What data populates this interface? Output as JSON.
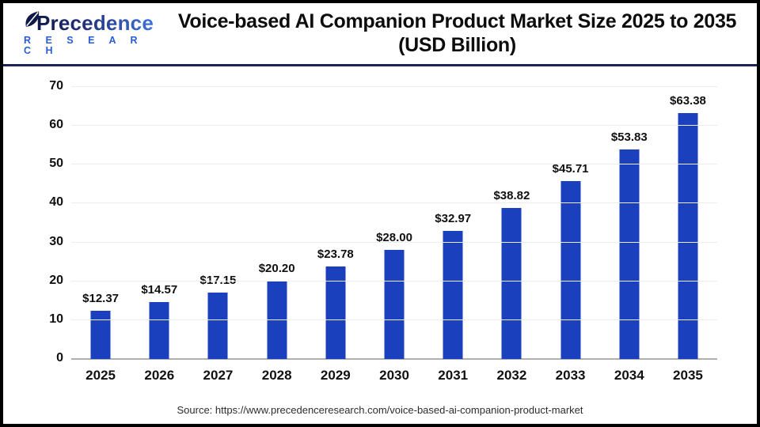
{
  "header": {
    "logo": {
      "word1": "Precedence",
      "word2": "R E S E A R C H"
    },
    "title_line1": "Voice-based AI Companion Product Market Size 2025 to 2035",
    "title_line2": "(USD Billion)"
  },
  "chart_data": {
    "type": "bar",
    "title": "Voice-based AI Companion Product Market Size 2025 to 2035 (USD Billion)",
    "categories": [
      "2025",
      "2026",
      "2027",
      "2028",
      "2029",
      "2030",
      "2031",
      "2032",
      "2033",
      "2034",
      "2035"
    ],
    "values": [
      12.37,
      14.57,
      17.15,
      20.2,
      23.78,
      28.0,
      32.97,
      38.82,
      45.71,
      53.83,
      63.38
    ],
    "value_labels": [
      "$12.37",
      "$14.57",
      "$17.15",
      "$20.20",
      "$23.78",
      "$28.00",
      "$32.97",
      "$38.82",
      "$45.71",
      "$53.83",
      "$63.38"
    ],
    "xlabel": "",
    "ylabel": "",
    "ylim": [
      0,
      70
    ],
    "yticks": [
      0,
      10,
      20,
      30,
      40,
      50,
      60,
      70
    ],
    "grid": true,
    "legend": "none",
    "bar_color": "#1a40bd"
  },
  "footer": {
    "source": "Source: https://www.precedenceresearch.com/voice-based-ai-companion-product-market"
  },
  "colors": {
    "bar": "#1a40bd",
    "divider_navy": "#1b2357",
    "grid": "#ededed",
    "axis_line": "#b0b0b0",
    "logo_dark": "#0f1847",
    "logo_light": "#3e73da",
    "research_blue": "#2a5bd7",
    "text": "#111111"
  }
}
